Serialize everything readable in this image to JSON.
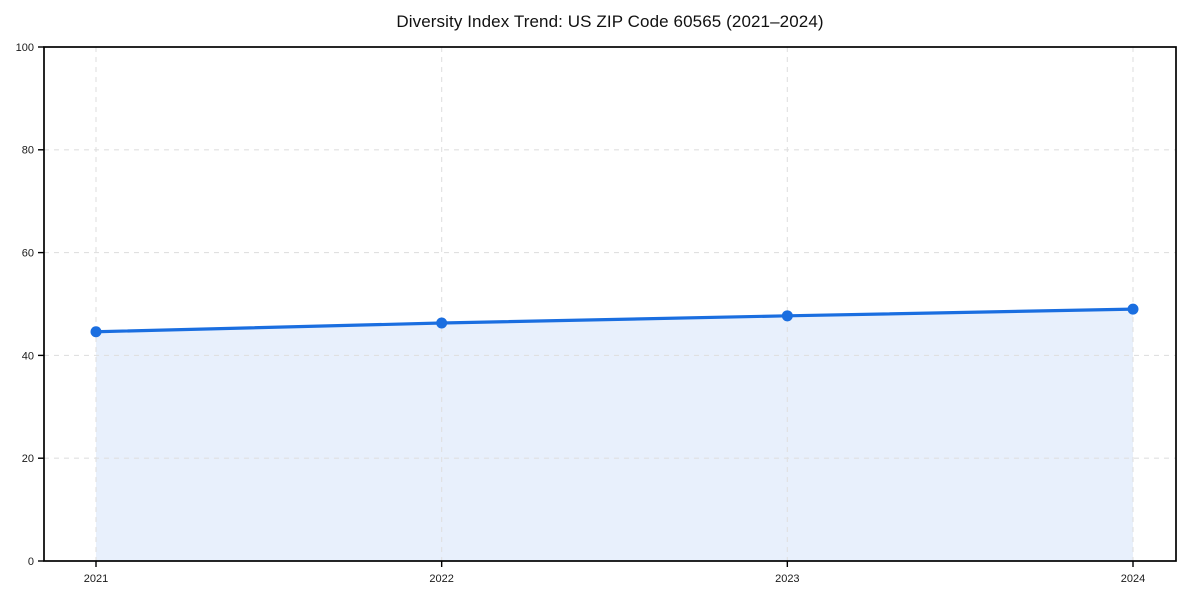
{
  "chart_data": {
    "type": "area",
    "title": "Diversity Index Trend: US ZIP Code 60565 (2021–2024)",
    "categories": [
      "2021",
      "2022",
      "2023",
      "2024"
    ],
    "series": [
      {
        "name": "Diversity Index",
        "values": [
          44.6,
          46.3,
          47.7,
          49.0
        ]
      }
    ],
    "xlabel": "",
    "ylabel": "",
    "ylim": [
      0,
      100
    ],
    "yticks": [
      0,
      20,
      40,
      60,
      80,
      100
    ],
    "grid": "dashed-both-axes",
    "legend": "none",
    "colors": {
      "line": "#1a6ee0",
      "marker": "#1a6ee0",
      "fill": "#e8f0fc",
      "grid": "#e0e0e0",
      "spine": "#000000",
      "tick_text": "#1a1a1a",
      "title_text": "#111111",
      "background": "#ffffff"
    }
  }
}
